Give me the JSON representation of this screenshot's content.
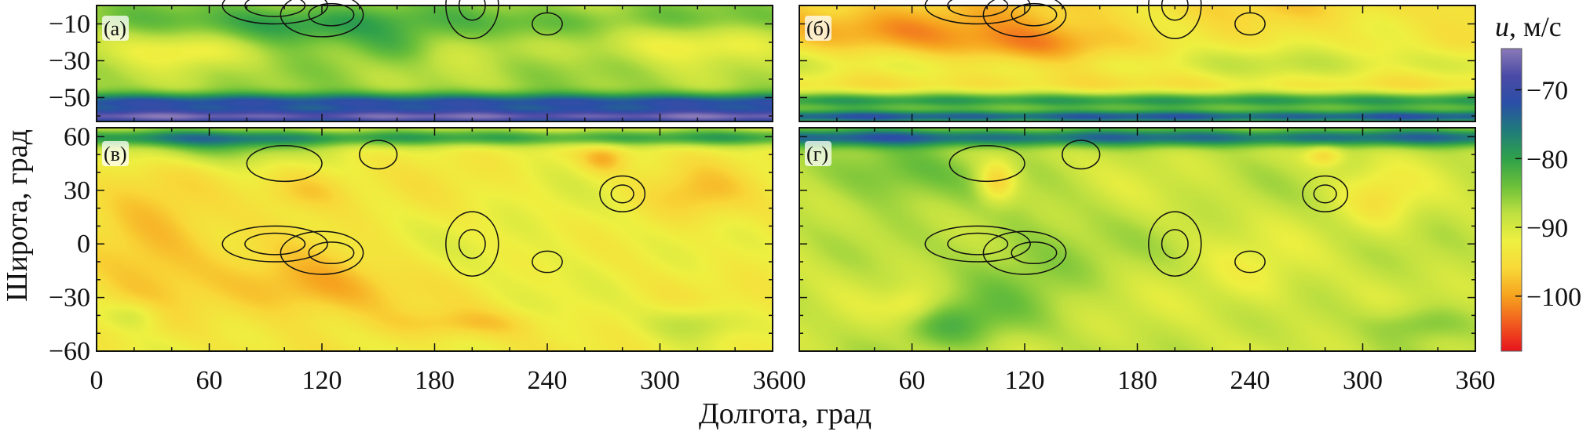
{
  "chart_data": {
    "type": "heatmap",
    "xlabel": "Долгота, град",
    "ylabel": "Широта, град",
    "colorbar": {
      "title_var": "u",
      "title_unit": ", м/с",
      "range": [
        -108,
        -64
      ],
      "ticks": [
        {
          "value": -70,
          "label": "−70"
        },
        {
          "value": -80,
          "label": "−80"
        },
        {
          "value": -90,
          "label": "−90"
        },
        {
          "value": -100,
          "label": "−100"
        }
      ],
      "colors": [
        "#e8141e",
        "#f05a1e",
        "#f6a21e",
        "#f8d838",
        "#eef040",
        "#bfe040",
        "#6cc03a",
        "#2fa14a",
        "#1f7c7a",
        "#2a4fa6",
        "#4a4aa6",
        "#8a7ab8"
      ]
    },
    "x_ticks": [
      {
        "value": 0,
        "label": "0"
      },
      {
        "value": 60,
        "label": "60"
      },
      {
        "value": 120,
        "label": "120"
      },
      {
        "value": 180,
        "label": "180"
      },
      {
        "value": 240,
        "label": "240"
      },
      {
        "value": 300,
        "label": "300"
      },
      {
        "value": 360,
        "label": "360"
      }
    ],
    "top_y_ticks": [
      {
        "value": -10,
        "label": "−10"
      },
      {
        "value": -30,
        "label": "−30"
      },
      {
        "value": -50,
        "label": "−50"
      }
    ],
    "bottom_y_ticks": [
      {
        "value": 60,
        "label": "60"
      },
      {
        "value": 30,
        "label": "30"
      },
      {
        "value": 0,
        "label": "0"
      },
      {
        "value": -30,
        "label": "−30"
      },
      {
        "value": -60,
        "label": "−60"
      }
    ],
    "panels": [
      {
        "id": "a",
        "tag": "(а)",
        "xlim": [
          0,
          360
        ],
        "ylim": [
          -63,
          0
        ],
        "base": -87,
        "bands": [
          {
            "lat": -7,
            "width": 8,
            "amp": 2
          },
          {
            "lat": -22,
            "width": 10,
            "amp": -2
          },
          {
            "lat": -53,
            "width": 5,
            "amp": 15
          },
          {
            "lat": -61,
            "width": 4,
            "amp": 20
          }
        ],
        "blobs": [
          {
            "lon": 110,
            "lat": -12,
            "w": 50,
            "h": 12,
            "amp": 7
          },
          {
            "lon": 160,
            "lat": -22,
            "w": 25,
            "h": 10,
            "amp": 5
          },
          {
            "lon": 50,
            "lat": -25,
            "w": 30,
            "h": 9,
            "amp": -4
          },
          {
            "lon": 320,
            "lat": -20,
            "w": 40,
            "h": 10,
            "amp": -3
          },
          {
            "lon": 230,
            "lat": -12,
            "w": 40,
            "h": 10,
            "amp": 3
          }
        ]
      },
      {
        "id": "b",
        "tag": "(б)",
        "xlim": [
          0,
          360
        ],
        "ylim": [
          -63,
          0
        ],
        "base": -96,
        "bands": [
          {
            "lat": -32,
            "width": 10,
            "amp": 6
          },
          {
            "lat": -52,
            "width": 5,
            "amp": 16
          },
          {
            "lat": -61,
            "width": 4,
            "amp": 22
          }
        ],
        "blobs": [
          {
            "lon": 120,
            "lat": -25,
            "w": 50,
            "h": 14,
            "amp": -8
          },
          {
            "lon": 45,
            "lat": -12,
            "w": 45,
            "h": 12,
            "amp": -5
          },
          {
            "lon": 300,
            "lat": -15,
            "w": 50,
            "h": 12,
            "amp": 3
          },
          {
            "lon": 200,
            "lat": -15,
            "w": 40,
            "h": 12,
            "amp": 2
          }
        ]
      },
      {
        "id": "c",
        "tag": "(в)",
        "xlim": [
          0,
          360
        ],
        "ylim": [
          -60,
          65
        ],
        "base": -93,
        "bands": [
          {
            "lat": 60,
            "width": 5,
            "amp": 12
          }
        ],
        "blobs": [
          {
            "lon": 30,
            "lat": 0,
            "w": 35,
            "h": 30,
            "amp": -6
          },
          {
            "lon": 115,
            "lat": -25,
            "w": 45,
            "h": 18,
            "amp": -7
          },
          {
            "lon": 110,
            "lat": 30,
            "w": 25,
            "h": 12,
            "amp": -5
          },
          {
            "lon": 270,
            "lat": 48,
            "w": 12,
            "h": 8,
            "amp": -6
          },
          {
            "lon": 320,
            "lat": 28,
            "w": 25,
            "h": 15,
            "amp": -4
          },
          {
            "lon": 70,
            "lat": 55,
            "w": 50,
            "h": 10,
            "amp": 8
          },
          {
            "lon": 320,
            "lat": -45,
            "w": 25,
            "h": 10,
            "amp": 6
          },
          {
            "lon": 200,
            "lat": -45,
            "w": 40,
            "h": 8,
            "amp": -4
          },
          {
            "lon": 20,
            "lat": -40,
            "w": 15,
            "h": 8,
            "amp": 4
          },
          {
            "lon": 240,
            "lat": 0,
            "w": 40,
            "h": 30,
            "amp": 2
          }
        ]
      },
      {
        "id": "d",
        "tag": "(г)",
        "xlim": [
          0,
          360
        ],
        "ylim": [
          -60,
          65
        ],
        "base": -89,
        "bands": [
          {
            "lat": 60,
            "width": 5,
            "amp": 14
          }
        ],
        "blobs": [
          {
            "lon": 50,
            "lat": 40,
            "w": 40,
            "h": 18,
            "amp": 6
          },
          {
            "lon": 105,
            "lat": 35,
            "w": 10,
            "h": 12,
            "amp": -9
          },
          {
            "lon": 280,
            "lat": 50,
            "w": 10,
            "h": 6,
            "amp": -7
          },
          {
            "lon": 310,
            "lat": 25,
            "w": 20,
            "h": 18,
            "amp": -5
          },
          {
            "lon": 120,
            "lat": -10,
            "w": 40,
            "h": 30,
            "amp": 4
          },
          {
            "lon": 80,
            "lat": -45,
            "w": 30,
            "h": 15,
            "amp": 6
          },
          {
            "lon": 330,
            "lat": -45,
            "w": 25,
            "h": 10,
            "amp": 5
          },
          {
            "lon": 60,
            "lat": -35,
            "w": 15,
            "h": 10,
            "amp": -5
          },
          {
            "lon": 240,
            "lat": -20,
            "w": 30,
            "h": 20,
            "amp": -3
          }
        ]
      }
    ]
  }
}
